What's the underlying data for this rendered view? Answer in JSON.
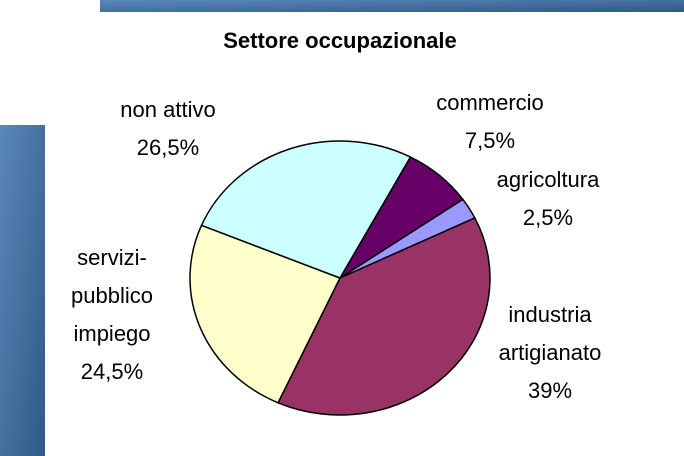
{
  "chart_data": {
    "type": "pie",
    "title": "Settore occupazionale",
    "categories": [
      "commercio",
      "agricoltura",
      "industria\nartigianato",
      "servizi-\npubblico\nimpiego",
      "non attivo"
    ],
    "values": [
      7.5,
      2.5,
      39,
      24.5,
      26.5
    ],
    "value_labels": [
      "7,5%",
      "2,5%",
      "39%",
      "24,5%",
      "26,5%"
    ],
    "colors": [
      "#660066",
      "#9999ff",
      "#993366",
      "#ffffcc",
      "#ccffff"
    ]
  }
}
